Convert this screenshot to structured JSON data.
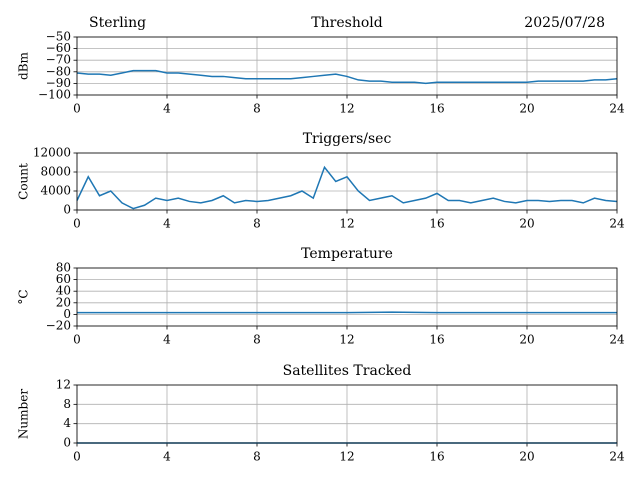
{
  "chart_data": [
    {
      "type": "line",
      "title": "Threshold",
      "left_title": "Sterling",
      "right_title": "2025/07/28",
      "ylabel": "dBm",
      "x": [
        0,
        0.5,
        1,
        1.5,
        2,
        2.5,
        3,
        3.5,
        4,
        4.5,
        5,
        5.5,
        6,
        6.5,
        7,
        7.5,
        8,
        8.5,
        9,
        9.5,
        10,
        10.5,
        11,
        11.5,
        12,
        12.5,
        13,
        13.5,
        14,
        14.5,
        15,
        15.5,
        16,
        16.5,
        17,
        17.5,
        18,
        18.5,
        19,
        19.5,
        20,
        20.5,
        21,
        21.5,
        22,
        22.5,
        23,
        23.5,
        24
      ],
      "series": [
        {
          "color": "#1f77b4",
          "values": [
            -81,
            -82,
            -82,
            -83,
            -81,
            -79,
            -79,
            -79,
            -81,
            -81,
            -82,
            -83,
            -84,
            -84,
            -85,
            -86,
            -86,
            -86,
            -86,
            -86,
            -85,
            -84,
            -83,
            -82,
            -84,
            -87,
            -88,
            -88,
            -89,
            -89,
            -89,
            -90,
            -89,
            -89,
            -89,
            -89,
            -89,
            -89,
            -89,
            -89,
            -89,
            -88,
            -88,
            -88,
            -88,
            -88,
            -87,
            -87,
            -86
          ]
        }
      ],
      "xlim": [
        0,
        24
      ],
      "xticks": [
        0,
        4,
        8,
        12,
        16,
        20,
        24
      ],
      "ylim": [
        -100,
        -50
      ],
      "yticks": [
        {
          "value": -50,
          "label": "−50"
        },
        {
          "value": -60,
          "label": "−60"
        },
        {
          "value": -70,
          "label": "−70"
        },
        {
          "value": -80,
          "label": "−80"
        },
        {
          "value": -90,
          "label": "−90"
        },
        {
          "value": -100,
          "label": "−100"
        }
      ],
      "grid": true
    },
    {
      "type": "line",
      "title": "Triggers/sec",
      "ylabel": "Count",
      "x": [
        0,
        0.5,
        1,
        1.5,
        2,
        2.5,
        3,
        3.5,
        4,
        4.5,
        5,
        5.5,
        6,
        6.5,
        7,
        7.5,
        8,
        8.5,
        9,
        9.5,
        10,
        10.5,
        11,
        11.5,
        12,
        12.5,
        13,
        13.5,
        14,
        14.5,
        15,
        15.5,
        16,
        16.5,
        17,
        17.5,
        18,
        18.5,
        19,
        19.5,
        20,
        20.5,
        21,
        21.5,
        22,
        22.5,
        23,
        23.5,
        24
      ],
      "series": [
        {
          "color": "#1f77b4",
          "values": [
            2000,
            7000,
            3000,
            4000,
            1500,
            300,
            1000,
            2500,
            2000,
            2500,
            1800,
            1500,
            2000,
            3000,
            1500,
            2000,
            1800,
            2000,
            2500,
            3000,
            4000,
            2500,
            9000,
            6000,
            7000,
            4000,
            2000,
            2500,
            3000,
            1500,
            2000,
            2500,
            3500,
            2000,
            2000,
            1500,
            2000,
            2500,
            1800,
            1500,
            2000,
            2000,
            1800,
            2000,
            2000,
            1500,
            2500,
            2000,
            1800
          ]
        }
      ],
      "xlim": [
        0,
        24
      ],
      "xticks": [
        0,
        4,
        8,
        12,
        16,
        20,
        24
      ],
      "ylim": [
        0,
        12000
      ],
      "yticks": [
        0,
        4000,
        8000,
        12000
      ],
      "grid": true
    },
    {
      "type": "line",
      "title": "Temperature",
      "ylabel": "°C",
      "x": [
        0,
        2,
        4,
        6,
        8,
        10,
        12,
        14,
        16,
        18,
        20,
        22,
        24
      ],
      "series": [
        {
          "color": "#1f77b4",
          "values": [
            3,
            3,
            3,
            3,
            3,
            3,
            3,
            4,
            3,
            3,
            3,
            3,
            3
          ]
        }
      ],
      "xlim": [
        0,
        24
      ],
      "xticks": [
        0,
        4,
        8,
        12,
        16,
        20,
        24
      ],
      "ylim": [
        -20,
        80
      ],
      "yticks": [
        {
          "value": -20,
          "label": "−20"
        },
        0,
        20,
        40,
        60,
        80
      ],
      "grid": true
    },
    {
      "type": "line",
      "title": "Satellites Tracked",
      "ylabel": "Number",
      "x": [
        0,
        4,
        8,
        12,
        16,
        20,
        24
      ],
      "series": [
        {
          "color": "#1f77b4",
          "values": [
            0,
            0,
            0,
            0,
            0,
            0,
            0
          ]
        }
      ],
      "xlim": [
        0,
        24
      ],
      "xticks": [
        0,
        4,
        8,
        12,
        16,
        20,
        24
      ],
      "ylim": [
        0,
        12
      ],
      "yticks": [
        0,
        4,
        8,
        12
      ],
      "grid": true
    }
  ]
}
